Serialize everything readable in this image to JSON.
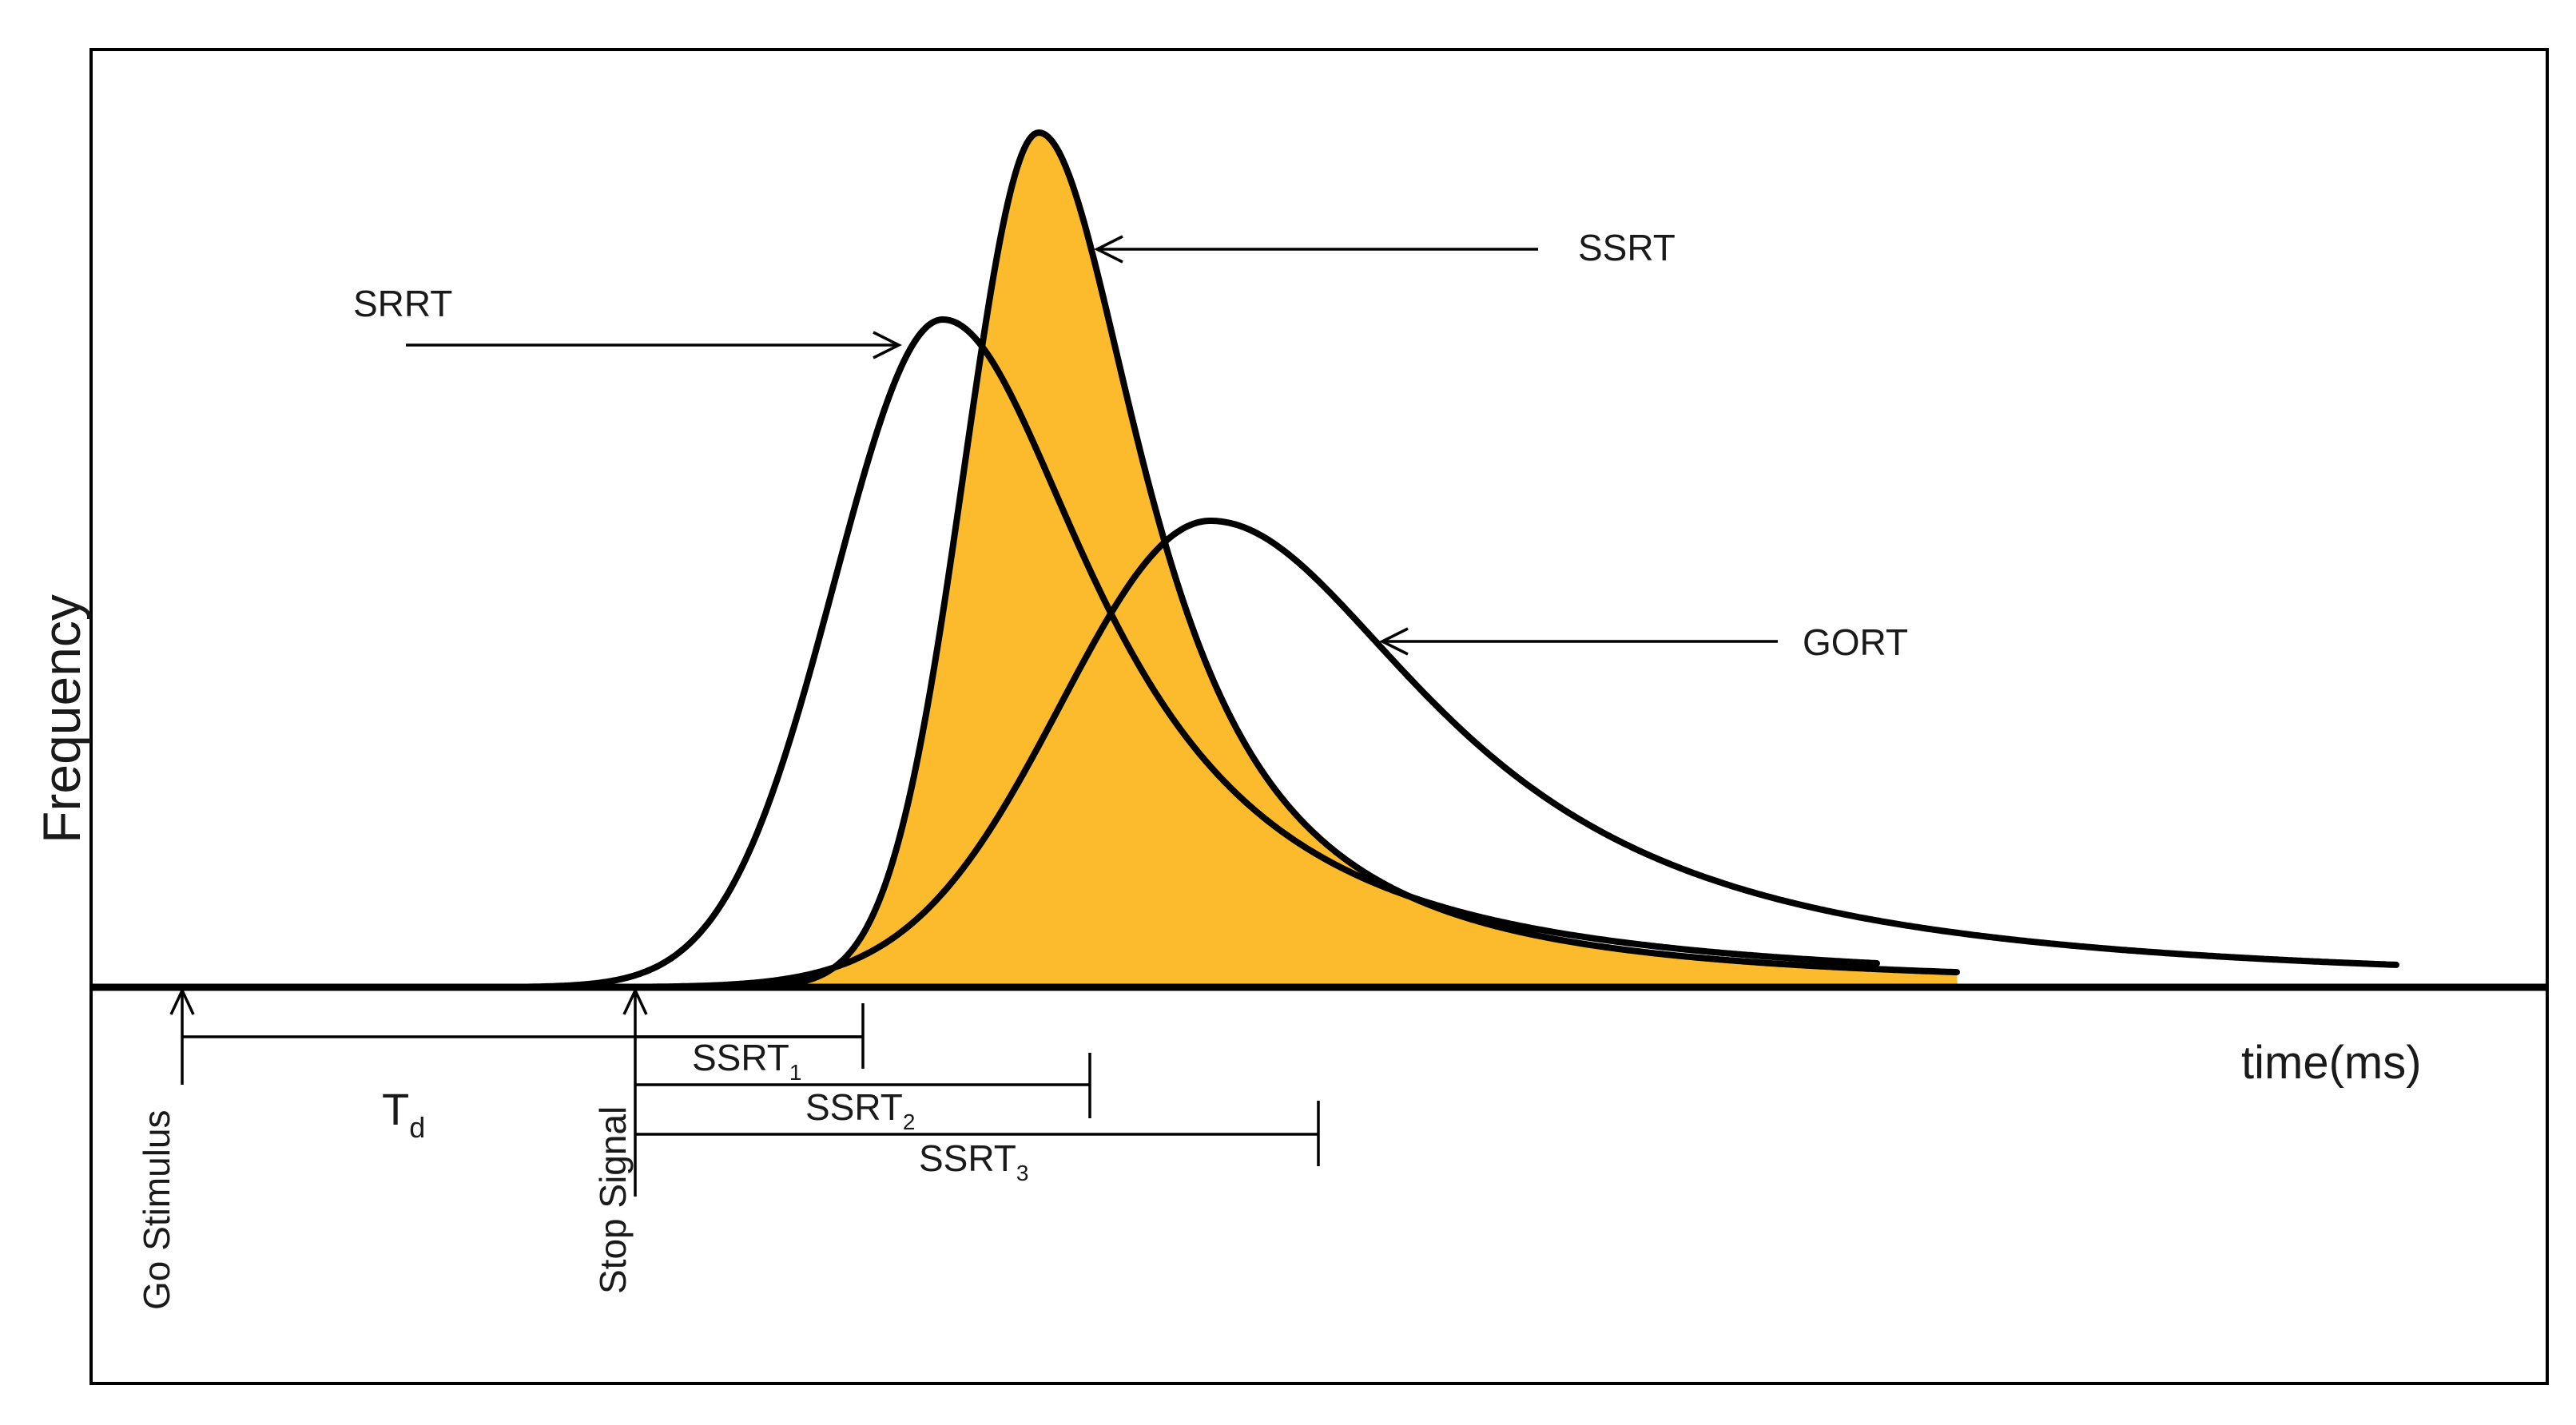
{
  "y_axis_label": "Frequency",
  "x_axis_label": "time(ms)",
  "colors": {
    "ssrt_fill": "#FBBB2C",
    "curve": "#000000",
    "background": "#FFFFFF"
  },
  "curves": {
    "srrt": "SRRT",
    "ssrt": "SSRT",
    "gort": "GORT"
  },
  "markers": {
    "go_stimulus": "Go Stimulus",
    "stop_signal": "Stop Signal"
  },
  "intervals": {
    "td": {
      "main": "T",
      "sub": "d"
    },
    "ssrt1": {
      "main": "SSRT",
      "sub": "1"
    },
    "ssrt2": {
      "main": "SSRT",
      "sub": "2"
    },
    "ssrt3": {
      "main": "SSRT",
      "sub": "3"
    }
  }
}
